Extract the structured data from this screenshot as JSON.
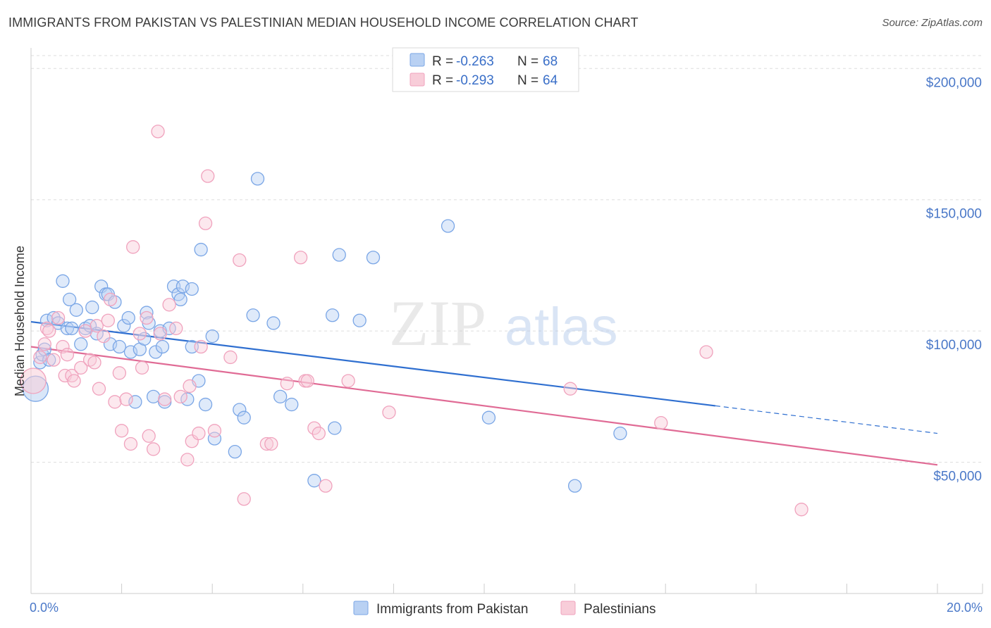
{
  "title": "IMMIGRANTS FROM PAKISTAN VS PALESTINIAN MEDIAN HOUSEHOLD INCOME CORRELATION CHART",
  "source": "Source: ZipAtlas.com",
  "watermark": {
    "zip": "ZIP",
    "atlas": "atlas"
  },
  "chart_data": {
    "type": "scatter",
    "xlabel": "",
    "ylabel": "Median Household Income",
    "xlim": [
      0,
      20
    ],
    "ylim": [
      0,
      210000
    ],
    "x_tick_labels": [
      "0.0%",
      "20.0%"
    ],
    "y_ticks": [
      50000,
      100000,
      150000,
      200000
    ],
    "y_tick_labels": [
      "$50,000",
      "$100,000",
      "$150,000",
      "$200,000"
    ],
    "grid": true,
    "legend_placement": "top-center",
    "series": [
      {
        "name": "Immigrants from Pakistan",
        "color": "#7aa6e6",
        "fill": "#b9d1f3",
        "line_color": "#2f6fd0",
        "r": "-0.263",
        "n": "68",
        "trend": {
          "x0": 0,
          "y0": 103500,
          "x1": 15.1,
          "y1": 71500,
          "dash_to_x": 20,
          "dash_to_y": 61000
        },
        "points": [
          [
            0.1,
            78000
          ],
          [
            0.2,
            88000
          ],
          [
            0.25,
            91000
          ],
          [
            0.3,
            93000
          ],
          [
            0.35,
            104000
          ],
          [
            0.4,
            89000
          ],
          [
            0.5,
            105000
          ],
          [
            0.6,
            103000
          ],
          [
            0.7,
            119000
          ],
          [
            0.8,
            101000
          ],
          [
            0.85,
            112000
          ],
          [
            0.9,
            101000
          ],
          [
            1.0,
            108000
          ],
          [
            1.1,
            95000
          ],
          [
            1.2,
            101000
          ],
          [
            1.3,
            102000
          ],
          [
            1.35,
            109000
          ],
          [
            1.45,
            99000
          ],
          [
            1.55,
            117000
          ],
          [
            1.65,
            114000
          ],
          [
            1.7,
            114000
          ],
          [
            1.75,
            95000
          ],
          [
            1.85,
            111000
          ],
          [
            1.95,
            94000
          ],
          [
            2.05,
            102000
          ],
          [
            2.15,
            105000
          ],
          [
            2.2,
            92000
          ],
          [
            2.3,
            73000
          ],
          [
            2.4,
            93000
          ],
          [
            2.5,
            97000
          ],
          [
            2.55,
            107000
          ],
          [
            2.6,
            103000
          ],
          [
            2.7,
            75000
          ],
          [
            2.75,
            92000
          ],
          [
            2.85,
            100000
          ],
          [
            2.9,
            94000
          ],
          [
            2.95,
            73000
          ],
          [
            3.05,
            101000
          ],
          [
            3.15,
            117000
          ],
          [
            3.25,
            114000
          ],
          [
            3.3,
            112000
          ],
          [
            3.35,
            117000
          ],
          [
            3.45,
            74000
          ],
          [
            3.55,
            116000
          ],
          [
            3.55,
            94000
          ],
          [
            3.7,
            81000
          ],
          [
            3.75,
            131000
          ],
          [
            3.85,
            72000
          ],
          [
            4.0,
            98000
          ],
          [
            4.05,
            59000
          ],
          [
            4.5,
            54000
          ],
          [
            4.6,
            70000
          ],
          [
            4.7,
            67000
          ],
          [
            4.9,
            106000
          ],
          [
            5.0,
            158000
          ],
          [
            5.35,
            103000
          ],
          [
            5.5,
            75000
          ],
          [
            5.75,
            72000
          ],
          [
            6.25,
            43000
          ],
          [
            6.65,
            106000
          ],
          [
            6.7,
            63000
          ],
          [
            6.8,
            129000
          ],
          [
            7.25,
            104000
          ],
          [
            7.55,
            128000
          ],
          [
            9.2,
            140000
          ],
          [
            10.1,
            67000
          ],
          [
            12.0,
            41000
          ],
          [
            13.0,
            61000
          ]
        ]
      },
      {
        "name": "Palestinians",
        "color": "#f0a2bd",
        "fill": "#f8cdd9",
        "line_color": "#e06b95",
        "r": "-0.293",
        "n": "64",
        "trend": {
          "x0": 0,
          "y0": 94000,
          "x1": 20,
          "y1": 49000
        },
        "points": [
          [
            0.05,
            81000
          ],
          [
            0.2,
            90000
          ],
          [
            0.3,
            95000
          ],
          [
            0.35,
            101000
          ],
          [
            0.4,
            100000
          ],
          [
            0.5,
            89000
          ],
          [
            0.6,
            105000
          ],
          [
            0.7,
            94000
          ],
          [
            0.75,
            83000
          ],
          [
            0.8,
            91000
          ],
          [
            0.9,
            83000
          ],
          [
            0.95,
            81000
          ],
          [
            1.1,
            86000
          ],
          [
            1.2,
            100000
          ],
          [
            1.3,
            89000
          ],
          [
            1.4,
            88000
          ],
          [
            1.45,
            102000
          ],
          [
            1.5,
            78000
          ],
          [
            1.6,
            98000
          ],
          [
            1.7,
            104000
          ],
          [
            1.75,
            112000
          ],
          [
            1.85,
            73000
          ],
          [
            1.95,
            84000
          ],
          [
            2.0,
            62000
          ],
          [
            2.1,
            74000
          ],
          [
            2.2,
            57000
          ],
          [
            2.25,
            132000
          ],
          [
            2.4,
            99000
          ],
          [
            2.45,
            86000
          ],
          [
            2.55,
            105000
          ],
          [
            2.6,
            60000
          ],
          [
            2.7,
            55000
          ],
          [
            2.8,
            176000
          ],
          [
            2.85,
            99000
          ],
          [
            2.95,
            74000
          ],
          [
            3.05,
            110000
          ],
          [
            3.2,
            101000
          ],
          [
            3.3,
            75000
          ],
          [
            3.45,
            51000
          ],
          [
            3.5,
            79000
          ],
          [
            3.55,
            58000
          ],
          [
            3.7,
            61000
          ],
          [
            3.75,
            94000
          ],
          [
            3.85,
            141000
          ],
          [
            3.9,
            159000
          ],
          [
            4.05,
            62000
          ],
          [
            4.4,
            90000
          ],
          [
            4.6,
            127000
          ],
          [
            4.7,
            36000
          ],
          [
            5.2,
            57000
          ],
          [
            5.3,
            57000
          ],
          [
            5.65,
            80000
          ],
          [
            5.95,
            128000
          ],
          [
            6.05,
            81000
          ],
          [
            6.1,
            81000
          ],
          [
            6.25,
            63000
          ],
          [
            6.35,
            61000
          ],
          [
            6.5,
            41000
          ],
          [
            7.0,
            81000
          ],
          [
            7.9,
            69000
          ],
          [
            11.9,
            78000
          ],
          [
            13.9,
            65000
          ],
          [
            14.9,
            92000
          ],
          [
            17.0,
            32000
          ]
        ]
      }
    ]
  }
}
